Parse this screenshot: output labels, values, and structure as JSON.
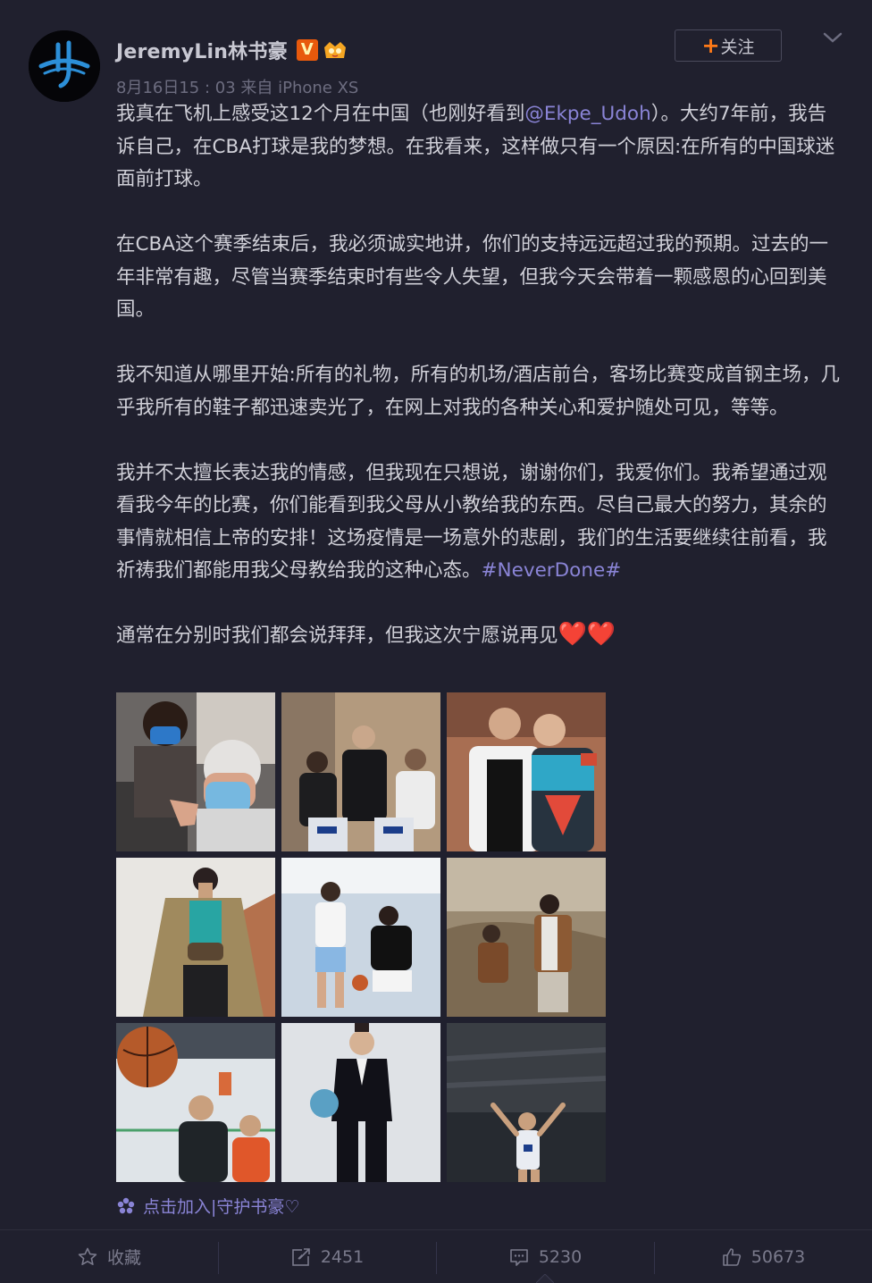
{
  "post": {
    "author": "JeremyLin林书豪",
    "verified_badge": "V",
    "meta": "8月16日15 : 03 来自 iPhone XS",
    "follow_label": "关注",
    "paragraphs": {
      "p1_a": "我真在飞机上感受这12个月在中国（也刚好看到",
      "p1_mention": "@Ekpe_Udoh",
      "p1_b": "）。大约7年前，我告诉自己，在CBA打球是我的梦想。在我看来，这样做只有一个原因:在所有的中国球迷面前打球。",
      "p2": "在CBA这个赛季结束后，我必须诚实地讲，你们的支持远远超过我的预期。过去的一年非常有趣，尽管当赛季结束时有些令人失望，但我今天会带着一颗感恩的心回到美国。",
      "p3": "我不知道从哪里开始:所有的礼物，所有的机场/酒店前台，客场比赛变成首钢主场，几乎我所有的鞋子都迅速卖光了，在网上对我的各种关心和爱护随处可见，等等。",
      "p4_a": "我并不太擅长表达我的情感，但我现在只想说，谢谢你们，我爱你们。我希望通过观看我今年的比赛，你们能看到我父母从小教给我的东西。尽自己最大的努力，其余的事情就相信上帝的安排！这场疫情是一场意外的悲剧，我们的生活要继续往前看，我祈祷我们都能用我父母教给我的这种心态。",
      "p4_hashtag": "#NeverDone#",
      "p5": "通常在分别时我们都会说拜拜，但我这次宁愿说再见",
      "p5_emoji": "❤️❤️"
    },
    "supertopic": "点击加入|守护书豪♡"
  },
  "actions": {
    "favorite_label": "收藏",
    "repost_count": "2451",
    "comment_count": "5230",
    "like_count": "50673"
  },
  "colors": {
    "background": "#20202e",
    "link": "#8a84d6",
    "follow_plus": "#ff7a18",
    "verified": "#e8590c"
  }
}
